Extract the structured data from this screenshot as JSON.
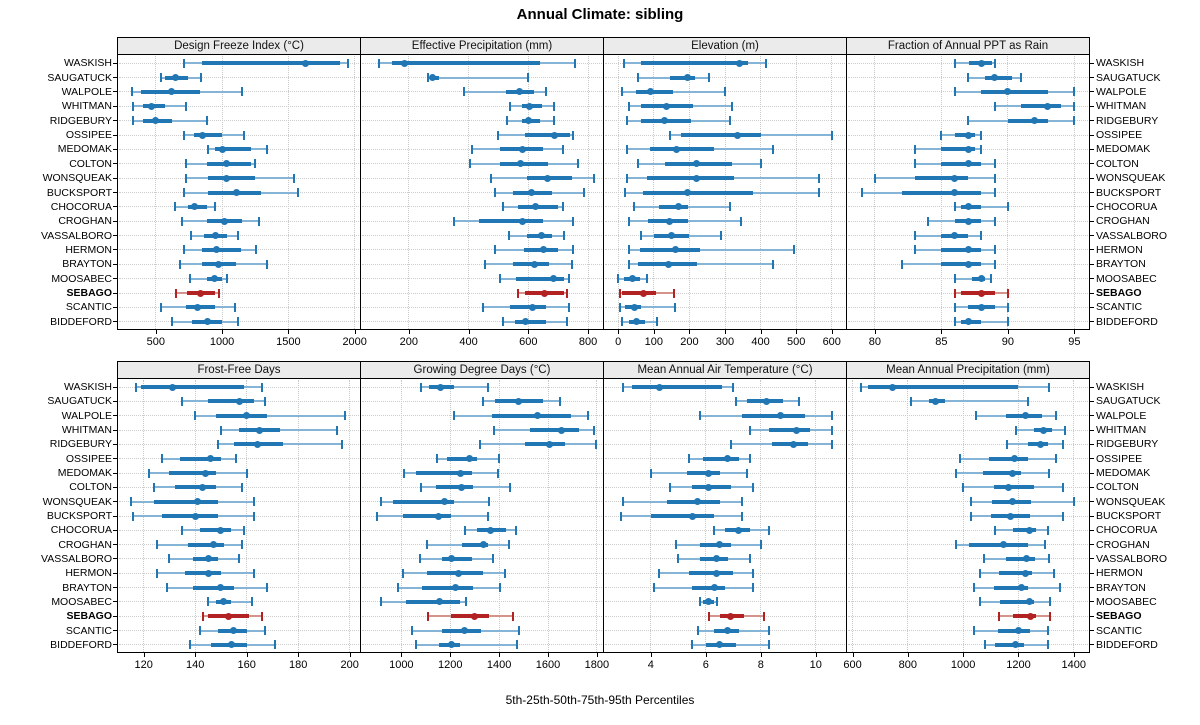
{
  "title": "Annual Climate: sibling",
  "footer": "5th-25th-50th-75th-95th Percentiles",
  "percentile_labels": [
    "5th",
    "25th",
    "50th",
    "75th",
    "95th"
  ],
  "stations": [
    "WASKISH",
    "SAUGATUCK",
    "WALPOLE",
    "WHITMAN",
    "RIDGEBURY",
    "OSSIPEE",
    "MEDOMAK",
    "COLTON",
    "WONSQUEAK",
    "BUCKSPORT",
    "CHOCORUA",
    "CROGHAN",
    "VASSALBORO",
    "HERMON",
    "BRAYTON",
    "MOOSABEC",
    "SEBAGO",
    "SCANTIC",
    "BIDDEFORD"
  ],
  "highlight_station": "SEBAGO",
  "colors": {
    "series": "#2077b4",
    "series_light": "#85b4d6",
    "highlight": "#b22222",
    "highlight_light": "#d4948c",
    "grid": "#c8c8c8",
    "header_bg": "#ebebeb",
    "border": "#000000"
  },
  "chart_data": [
    {
      "type": "dot-whisker-percentiles",
      "title": "Design Freeze Index (°C)",
      "xlim": [
        215,
        2040
      ],
      "ticks": [
        500,
        1000,
        1500,
        2000
      ],
      "values": [
        [
          710,
          850,
          1630,
          1890,
          1950
        ],
        [
          540,
          570,
          650,
          745,
          840
        ],
        [
          320,
          390,
          615,
          835,
          1150
        ],
        [
          330,
          405,
          470,
          570,
          725
        ],
        [
          325,
          405,
          500,
          620,
          885
        ],
        [
          715,
          785,
          850,
          1000,
          1165
        ],
        [
          890,
          950,
          1000,
          1215,
          1340
        ],
        [
          725,
          885,
          1035,
          1215,
          1250
        ],
        [
          725,
          895,
          1035,
          1250,
          1545
        ],
        [
          710,
          895,
          1105,
          1295,
          1575
        ],
        [
          645,
          740,
          795,
          885,
          950
        ],
        [
          695,
          885,
          1015,
          1150,
          1275
        ],
        [
          765,
          865,
          950,
          1035,
          1120
        ],
        [
          715,
          845,
          960,
          1145,
          1255
        ],
        [
          680,
          850,
          970,
          1105,
          1340
        ],
        [
          760,
          885,
          945,
          1000,
          1035
        ],
        [
          650,
          735,
          835,
          950,
          980
        ],
        [
          540,
          725,
          815,
          950,
          1095
        ],
        [
          620,
          770,
          890,
          1000,
          1120
        ]
      ]
    },
    {
      "type": "dot-whisker-percentiles",
      "title": "Effective Precipitation (mm)",
      "xlim": [
        40,
        850
      ],
      "ticks": [
        200,
        400,
        600,
        800
      ],
      "values": [
        [
          100,
          145,
          185,
          640,
          755
        ],
        [
          265,
          272,
          278,
          300,
          600
        ],
        [
          385,
          525,
          570,
          620,
          660
        ],
        [
          540,
          580,
          605,
          645,
          685
        ],
        [
          530,
          580,
          600,
          640,
          685
        ],
        [
          500,
          590,
          688,
          738,
          748
        ],
        [
          410,
          505,
          580,
          650,
          715
        ],
        [
          405,
          505,
          575,
          665,
          765
        ],
        [
          475,
          595,
          665,
          745,
          820
        ],
        [
          490,
          550,
          610,
          680,
          785
        ],
        [
          515,
          565,
          625,
          700,
          715
        ],
        [
          350,
          435,
          580,
          650,
          750
        ],
        [
          535,
          595,
          645,
          680,
          720
        ],
        [
          490,
          585,
          650,
          700,
          750
        ],
        [
          455,
          550,
          620,
          670,
          745
        ],
        [
          505,
          560,
          685,
          720,
          735
        ],
        [
          565,
          590,
          655,
          720,
          730
        ],
        [
          450,
          540,
          615,
          660,
          735
        ],
        [
          515,
          555,
          590,
          660,
          730
        ]
      ]
    },
    {
      "type": "dot-whisker-percentiles",
      "title": "Elevation (m)",
      "xlim": [
        -40,
        640
      ],
      "ticks": [
        0,
        100,
        200,
        300,
        400,
        500,
        600
      ],
      "values": [
        [
          15,
          65,
          340,
          365,
          415
        ],
        [
          55,
          145,
          195,
          215,
          255
        ],
        [
          10,
          50,
          90,
          155,
          300
        ],
        [
          30,
          65,
          135,
          210,
          320
        ],
        [
          25,
          65,
          130,
          205,
          315
        ],
        [
          145,
          175,
          335,
          400,
          600
        ],
        [
          25,
          90,
          165,
          270,
          435
        ],
        [
          55,
          130,
          220,
          320,
          400
        ],
        [
          25,
          80,
          220,
          325,
          565
        ],
        [
          20,
          70,
          195,
          380,
          565
        ],
        [
          45,
          115,
          170,
          195,
          315
        ],
        [
          30,
          85,
          145,
          195,
          345
        ],
        [
          65,
          100,
          150,
          200,
          290
        ],
        [
          30,
          60,
          160,
          230,
          495
        ],
        [
          30,
          55,
          140,
          220,
          435
        ],
        [
          0,
          15,
          40,
          60,
          80
        ],
        [
          5,
          10,
          70,
          105,
          157
        ],
        [
          5,
          20,
          45,
          65,
          160
        ],
        [
          10,
          30,
          50,
          75,
          110
        ]
      ]
    },
    {
      "type": "dot-whisker-percentiles",
      "title": "Fraction of Annual PPT as Rain",
      "xlim": [
        77.9,
        96.1
      ],
      "ticks": [
        80,
        85,
        90,
        95
      ],
      "values": [
        [
          86,
          87.1,
          88,
          88.8,
          89
        ],
        [
          87,
          88.3,
          89,
          90.3,
          91
        ],
        [
          86,
          88,
          90,
          93,
          95
        ],
        [
          89,
          91,
          93,
          94,
          95
        ],
        [
          87,
          90,
          92,
          93,
          95
        ],
        [
          85,
          86,
          87,
          87.5,
          88
        ],
        [
          83,
          85,
          87,
          87.5,
          88
        ],
        [
          83,
          85,
          87,
          88,
          89
        ],
        [
          80,
          83,
          86,
          87,
          89
        ],
        [
          79,
          82,
          86,
          88,
          89
        ],
        [
          86,
          86.5,
          87,
          88,
          90
        ],
        [
          84,
          86,
          87,
          88,
          89
        ],
        [
          83,
          85,
          86,
          87,
          88
        ],
        [
          83,
          85,
          87,
          88,
          89
        ],
        [
          82,
          85,
          87,
          88,
          89
        ],
        [
          86,
          87.3,
          88,
          88.3,
          88.7
        ],
        [
          86,
          86.5,
          88,
          89,
          90
        ],
        [
          86,
          87,
          88,
          89,
          90
        ],
        [
          86,
          86.5,
          87,
          88,
          90
        ]
      ]
    },
    {
      "type": "dot-whisker-percentiles",
      "title": "Frost-Free Days",
      "xlim": [
        110,
        204
      ],
      "ticks": [
        120,
        140,
        160,
        180,
        200
      ],
      "values": [
        [
          117,
          119,
          131,
          159,
          166
        ],
        [
          135,
          145,
          157,
          163,
          167
        ],
        [
          140,
          148,
          160,
          168,
          198
        ],
        [
          150,
          157,
          165,
          173,
          195
        ],
        [
          149,
          155,
          164,
          174,
          197
        ],
        [
          127,
          134,
          146,
          150,
          156
        ],
        [
          122,
          130,
          144,
          148,
          160
        ],
        [
          124,
          132,
          143,
          148,
          158
        ],
        [
          115,
          124,
          141,
          149,
          163
        ],
        [
          116,
          127,
          140,
          149,
          163
        ],
        [
          135,
          142,
          150,
          154,
          159
        ],
        [
          125,
          137,
          147,
          151,
          158
        ],
        [
          130,
          139,
          145,
          149,
          157
        ],
        [
          125,
          136,
          145,
          150,
          163
        ],
        [
          129,
          139,
          150,
          155,
          168
        ],
        [
          145,
          148,
          151,
          154,
          162
        ],
        [
          143,
          145,
          153,
          161,
          166
        ],
        [
          142,
          149,
          155,
          160,
          167
        ],
        [
          138,
          146,
          154,
          160,
          171
        ]
      ]
    },
    {
      "type": "dot-whisker-percentiles",
      "title": "Growing Degree Days (°C)",
      "xlim": [
        835,
        1825
      ],
      "ticks": [
        1000,
        1200,
        1400,
        1600,
        1800
      ],
      "values": [
        [
          1080,
          1115,
          1160,
          1215,
          1355
        ],
        [
          1335,
          1385,
          1480,
          1580,
          1650
        ],
        [
          1215,
          1370,
          1555,
          1695,
          1765
        ],
        [
          1380,
          1525,
          1655,
          1725,
          1790
        ],
        [
          1320,
          1505,
          1605,
          1670,
          1795
        ],
        [
          1145,
          1185,
          1280,
          1310,
          1400
        ],
        [
          1010,
          1060,
          1240,
          1290,
          1395
        ],
        [
          1080,
          1140,
          1245,
          1295,
          1445
        ],
        [
          915,
          965,
          1175,
          1215,
          1360
        ],
        [
          900,
          1005,
          1150,
          1205,
          1355
        ],
        [
          1260,
          1310,
          1365,
          1430,
          1470
        ],
        [
          1105,
          1250,
          1335,
          1355,
          1440
        ],
        [
          1075,
          1165,
          1205,
          1290,
          1375
        ],
        [
          1005,
          1105,
          1235,
          1335,
          1425
        ],
        [
          985,
          1085,
          1220,
          1295,
          1405
        ],
        [
          915,
          1020,
          1155,
          1240,
          1265
        ],
        [
          1110,
          1205,
          1300,
          1360,
          1455
        ],
        [
          1045,
          1165,
          1260,
          1325,
          1480
        ],
        [
          1060,
          1155,
          1205,
          1240,
          1475
        ]
      ]
    },
    {
      "type": "dot-whisker-percentiles",
      "title": "Mean Annual Air Temperature (°C)",
      "xlim": [
        2.3,
        11.1
      ],
      "ticks": [
        4,
        6,
        8,
        10
      ],
      "values": [
        [
          3.0,
          3.3,
          4.3,
          6.6,
          7.0
        ],
        [
          7.1,
          7.5,
          8.2,
          8.8,
          9.4
        ],
        [
          5.8,
          7.3,
          8.7,
          9.6,
          10.6
        ],
        [
          7.6,
          8.3,
          9.3,
          9.8,
          10.6
        ],
        [
          6.9,
          8.4,
          9.2,
          9.7,
          10.6
        ],
        [
          5.4,
          5.9,
          6.8,
          7.2,
          7.6
        ],
        [
          4.0,
          5.3,
          6.1,
          6.5,
          7.5
        ],
        [
          4.7,
          5.5,
          6.1,
          6.9,
          7.7
        ],
        [
          3.0,
          4.6,
          5.7,
          6.5,
          7.3
        ],
        [
          2.9,
          4.0,
          5.5,
          6.3,
          7.3
        ],
        [
          6.3,
          6.7,
          7.2,
          7.6,
          8.3
        ],
        [
          4.9,
          5.8,
          6.5,
          6.9,
          8.0
        ],
        [
          5.0,
          5.8,
          6.4,
          6.8,
          7.6
        ],
        [
          4.3,
          5.4,
          6.4,
          7.0,
          7.7
        ],
        [
          4.1,
          5.5,
          6.3,
          6.7,
          7.7
        ],
        [
          5.8,
          5.9,
          6.1,
          6.3,
          6.4
        ],
        [
          6.1,
          6.5,
          6.9,
          7.4,
          8.1
        ],
        [
          5.7,
          6.3,
          6.8,
          7.2,
          8.3
        ],
        [
          5.5,
          6.0,
          6.5,
          7.1,
          8.3
        ]
      ]
    },
    {
      "type": "dot-whisker-percentiles",
      "title": "Mean Annual Precipitation (mm)",
      "xlim": [
        580,
        1455
      ],
      "ticks": [
        600,
        800,
        1000,
        1200,
        1400
      ],
      "values": [
        [
          630,
          655,
          745,
          1200,
          1310
        ],
        [
          810,
          875,
          900,
          935,
          1235
        ],
        [
          1045,
          1155,
          1225,
          1285,
          1335
        ],
        [
          1190,
          1255,
          1290,
          1320,
          1370
        ],
        [
          1160,
          1235,
          1280,
          1305,
          1360
        ],
        [
          990,
          1095,
          1185,
          1235,
          1335
        ],
        [
          975,
          1070,
          1180,
          1210,
          1310
        ],
        [
          1000,
          1110,
          1165,
          1255,
          1360
        ],
        [
          1030,
          1105,
          1180,
          1245,
          1400
        ],
        [
          1030,
          1100,
          1170,
          1240,
          1360
        ],
        [
          1115,
          1180,
          1240,
          1265,
          1305
        ],
        [
          975,
          1020,
          1145,
          1235,
          1295
        ],
        [
          1075,
          1155,
          1230,
          1260,
          1310
        ],
        [
          1060,
          1130,
          1225,
          1250,
          1330
        ],
        [
          1040,
          1110,
          1210,
          1235,
          1350
        ],
        [
          1060,
          1135,
          1240,
          1255,
          1315
        ],
        [
          1130,
          1180,
          1245,
          1265,
          1315
        ],
        [
          1040,
          1125,
          1200,
          1240,
          1305
        ],
        [
          1080,
          1115,
          1190,
          1220,
          1305
        ]
      ]
    }
  ]
}
